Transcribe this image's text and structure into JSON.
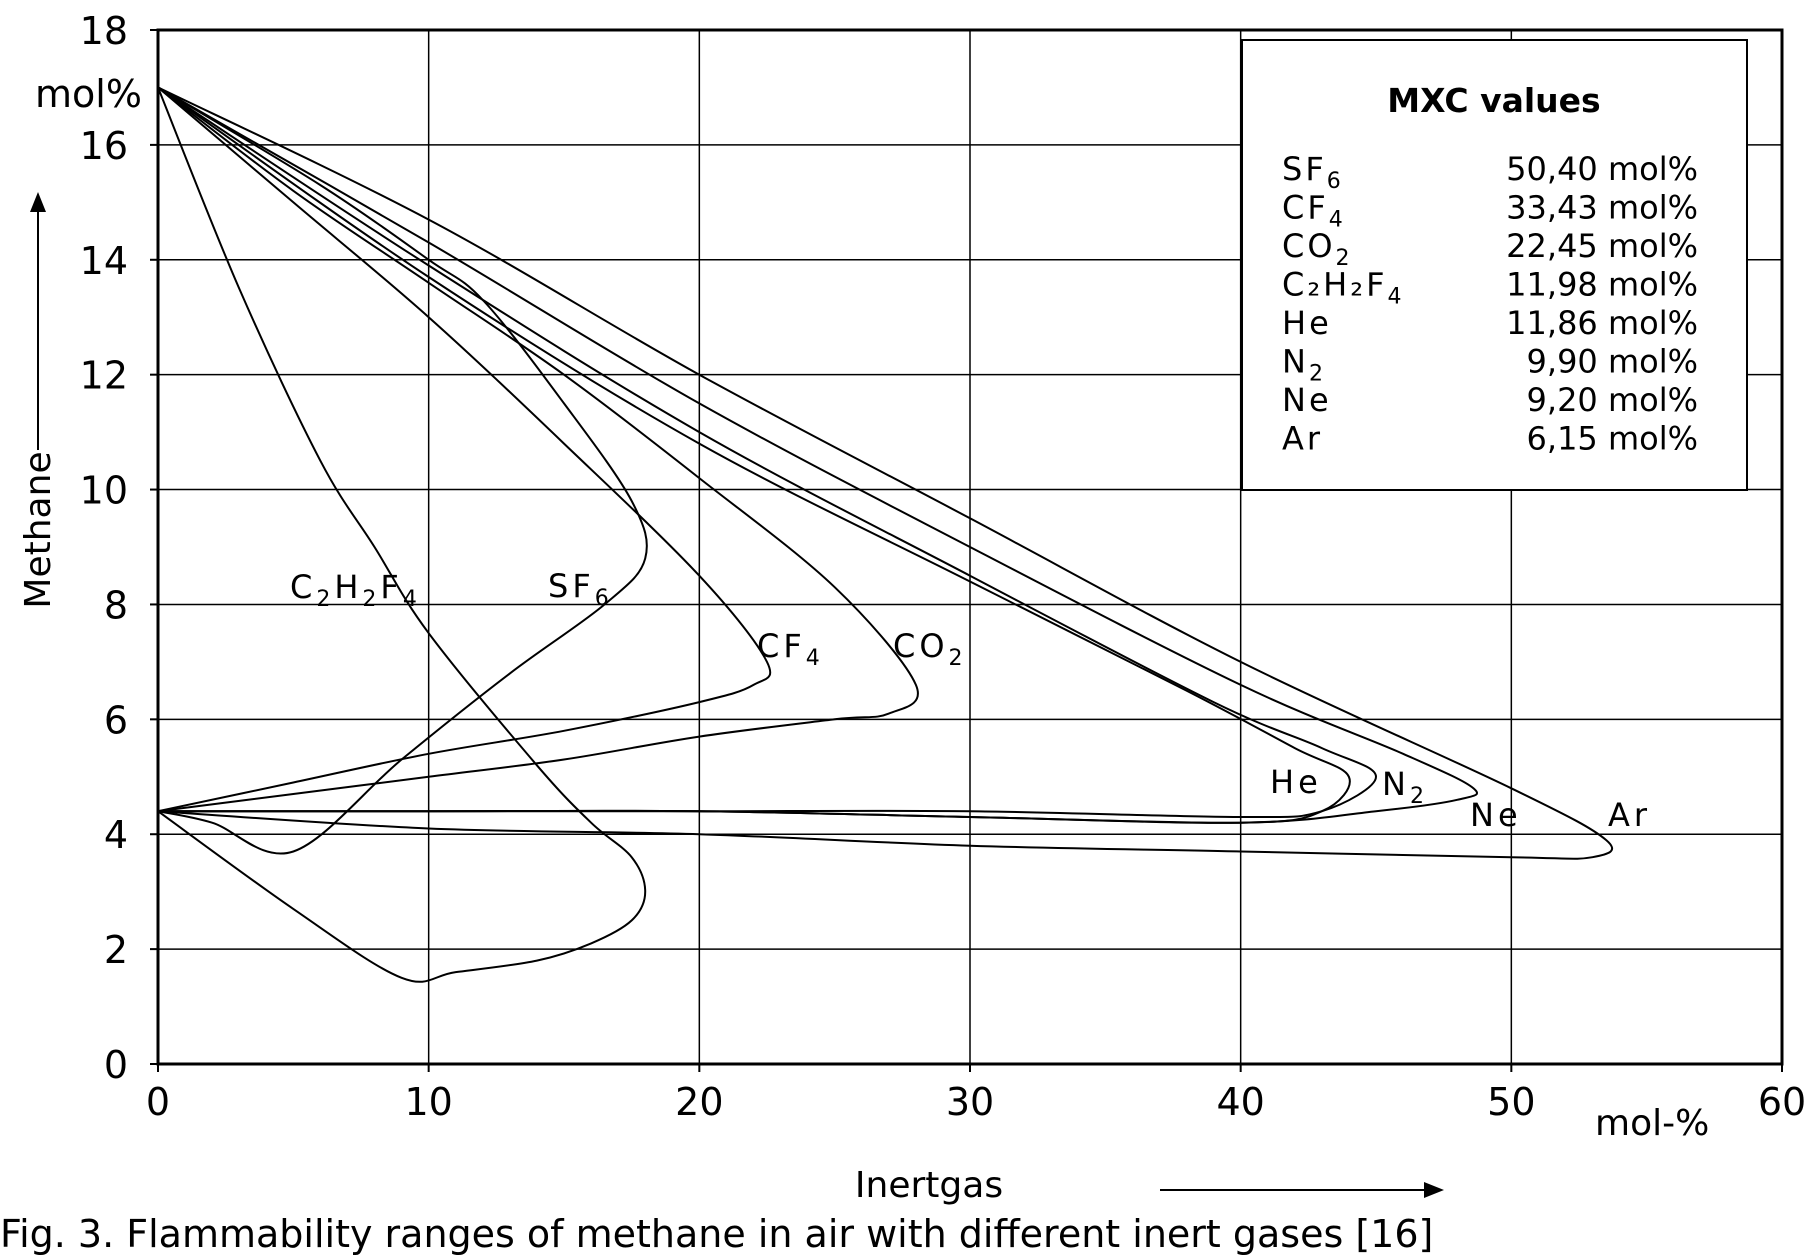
{
  "caption": "Fig. 3. Flammability ranges of methane in air with different inert gases [16]",
  "chart_data": {
    "type": "line",
    "xlabel": "Inertgas",
    "x_unit": "mol-%",
    "ylabel": "Methane",
    "y_unit": "mol%",
    "xlim": [
      0,
      60
    ],
    "ylim": [
      0,
      18
    ],
    "xticks": [
      0,
      10,
      20,
      30,
      40,
      50,
      60
    ],
    "yticks": [
      0,
      2,
      4,
      6,
      8,
      10,
      12,
      14,
      16,
      18
    ],
    "grid": true,
    "legend": {
      "title": "MXC values",
      "position": "top-right",
      "entries": [
        {
          "gas": "SF",
          "sub": "6",
          "value": "50,40 mol%",
          "color": "#000000"
        },
        {
          "gas": "CF",
          "sub": "4",
          "value": "33,43 mol%",
          "color": "#000000"
        },
        {
          "gas": "CO",
          "sub": "2",
          "value": "22,45 mol%",
          "color": "#000000"
        },
        {
          "gas": "C₂H₂F",
          "sub": "4",
          "value": "11,98 mol%",
          "color": "#e00000"
        },
        {
          "gas": "He",
          "sub": "",
          "value": "11,86 mol%",
          "color": "#000000"
        },
        {
          "gas": "N",
          "sub": "2",
          "value": "9,90 mol%",
          "color": "#000000"
        },
        {
          "gas": "Ne",
          "sub": "",
          "value": "9,20 mol%",
          "color": "#000000"
        },
        {
          "gas": "Ar",
          "sub": "",
          "value": "6,15 mol%",
          "color": "#000000"
        }
      ]
    },
    "series": [
      {
        "name": "C2H2F4",
        "label": "C₂H₂F₄",
        "points": [
          [
            0,
            17
          ],
          [
            3,
            13.5
          ],
          [
            6,
            10.5
          ],
          [
            8,
            9
          ],
          [
            10,
            7.5
          ],
          [
            14,
            5.2
          ],
          [
            16,
            4.2
          ],
          [
            17.5,
            3.6
          ],
          [
            18,
            3
          ],
          [
            17.5,
            2.5
          ],
          [
            16,
            2.1
          ],
          [
            14,
            1.8
          ],
          [
            11,
            1.6
          ],
          [
            9,
            1.5
          ],
          [
            5,
            2.7
          ],
          [
            0,
            4.4
          ]
        ]
      },
      {
        "name": "SF6",
        "label": "SF₆",
        "points": [
          [
            0,
            17
          ],
          [
            6,
            15.3
          ],
          [
            10,
            14
          ],
          [
            12,
            13.3
          ],
          [
            15,
            11.5
          ],
          [
            17.5,
            9.8
          ],
          [
            18,
            8.8
          ],
          [
            16.5,
            8
          ],
          [
            13,
            6.8
          ],
          [
            9,
            5.3
          ],
          [
            5,
            3.7
          ],
          [
            2,
            4.2
          ],
          [
            0,
            4.4
          ]
        ]
      },
      {
        "name": "CF4",
        "label": "CF₄",
        "points": [
          [
            0,
            17
          ],
          [
            5,
            15
          ],
          [
            10,
            13
          ],
          [
            15,
            10.8
          ],
          [
            20,
            8.5
          ],
          [
            22.5,
            7
          ],
          [
            22,
            6.6
          ],
          [
            20,
            6.3
          ],
          [
            15,
            5.8
          ],
          [
            10,
            5.4
          ],
          [
            5,
            4.9
          ],
          [
            0,
            4.4
          ]
        ]
      },
      {
        "name": "CO2",
        "label": "CO₂",
        "points": [
          [
            0,
            17
          ],
          [
            5,
            15.2
          ],
          [
            10,
            13.6
          ],
          [
            15,
            12
          ],
          [
            20,
            10.2
          ],
          [
            25,
            8.3
          ],
          [
            28,
            6.6
          ],
          [
            27,
            6.1
          ],
          [
            25,
            6
          ],
          [
            20,
            5.7
          ],
          [
            15,
            5.3
          ],
          [
            10,
            5
          ],
          [
            5,
            4.7
          ],
          [
            0,
            4.4
          ]
        ]
      },
      {
        "name": "He",
        "label": "He",
        "points": [
          [
            0,
            17
          ],
          [
            10,
            13.7
          ],
          [
            20,
            10.8
          ],
          [
            30,
            8.4
          ],
          [
            38,
            6.5
          ],
          [
            42,
            5.5
          ],
          [
            44,
            5
          ],
          [
            43,
            4.4
          ],
          [
            40,
            4.2
          ],
          [
            30,
            4.3
          ],
          [
            20,
            4.4
          ],
          [
            10,
            4.4
          ],
          [
            0,
            4.4
          ]
        ]
      },
      {
        "name": "N2",
        "label": "N₂",
        "points": [
          [
            0,
            17
          ],
          [
            10,
            13.9
          ],
          [
            20,
            11
          ],
          [
            30,
            8.5
          ],
          [
            39,
            6.3
          ],
          [
            43,
            5.5
          ],
          [
            45,
            5
          ],
          [
            43,
            4.4
          ],
          [
            40,
            4.3
          ],
          [
            30,
            4.4
          ],
          [
            20,
            4.4
          ],
          [
            10,
            4.4
          ],
          [
            0,
            4.4
          ]
        ]
      },
      {
        "name": "Ne",
        "label": "Ne",
        "points": [
          [
            0,
            17
          ],
          [
            10,
            14.3
          ],
          [
            20,
            11.5
          ],
          [
            30,
            9
          ],
          [
            40,
            6.6
          ],
          [
            46,
            5.4
          ],
          [
            48.6,
            4.8
          ],
          [
            48,
            4.6
          ],
          [
            45,
            4.4
          ],
          [
            40,
            4.2
          ],
          [
            30,
            4.3
          ],
          [
            20,
            4.4
          ],
          [
            10,
            4.4
          ],
          [
            0,
            4.4
          ]
        ]
      },
      {
        "name": "Ar",
        "label": "Ar",
        "points": [
          [
            0,
            17
          ],
          [
            10,
            14.7
          ],
          [
            20,
            12
          ],
          [
            30,
            9.5
          ],
          [
            40,
            7
          ],
          [
            50,
            4.8
          ],
          [
            53.5,
            3.9
          ],
          [
            53,
            3.6
          ],
          [
            50,
            3.6
          ],
          [
            40,
            3.7
          ],
          [
            30,
            3.8
          ],
          [
            20,
            4
          ],
          [
            10,
            4.1
          ],
          [
            0,
            4.4
          ]
        ]
      }
    ]
  }
}
